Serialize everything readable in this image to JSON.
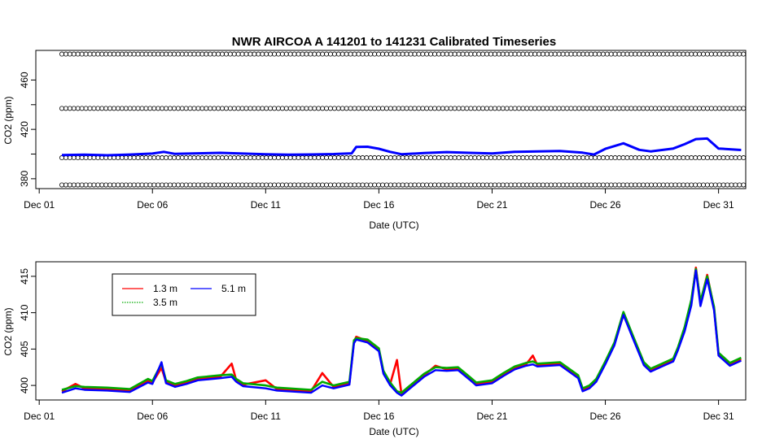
{
  "title": "NWR   AIRCOA  A   141201  to  141231   Calibrated Timeseries",
  "colors": {
    "ch1": "#ff0000",
    "ch2": "#00aa00",
    "ch3": "#0000ff",
    "ref": "#000000"
  },
  "chart_data": [
    {
      "type": "scatter",
      "name": "calibrated-timeseries-with-standards",
      "xlabel": "Date (UTC)",
      "ylabel": "CO2 (ppm)",
      "xticks": [
        "Dec 01",
        "Dec 06",
        "Dec 11",
        "Dec 16",
        "Dec 21",
        "Dec 26",
        "Dec 31"
      ],
      "xtick_days": [
        1,
        6,
        11,
        16,
        21,
        26,
        31
      ],
      "xlim": [
        0.85,
        32.2
      ],
      "yticks": [
        380,
        420,
        460
      ],
      "yticks_minor": [
        400,
        440
      ],
      "ylim": [
        372,
        484
      ],
      "x_range": [
        2.0,
        32.1
      ],
      "standards": [
        {
          "value": 375,
          "marker": "open-circle"
        },
        {
          "value": 397,
          "marker": "open-circle"
        },
        {
          "value": 437,
          "marker": "open-circle"
        },
        {
          "value": 481,
          "marker": "open-circle"
        }
      ],
      "series": [
        {
          "color_key": "ch3",
          "points": [
            [
              2.0,
              399.2
            ],
            [
              3.0,
              399.5
            ],
            [
              4.0,
              399.0
            ],
            [
              5.0,
              399.6
            ],
            [
              6.0,
              400.4
            ],
            [
              6.5,
              401.8
            ],
            [
              7.0,
              400.1
            ],
            [
              8.0,
              400.6
            ],
            [
              9.0,
              401.0
            ],
            [
              10.0,
              400.4
            ],
            [
              11.0,
              399.9
            ],
            [
              12.0,
              399.5
            ],
            [
              13.0,
              399.7
            ],
            [
              14.0,
              400.0
            ],
            [
              14.8,
              400.6
            ],
            [
              15.0,
              405.8
            ],
            [
              15.5,
              405.9
            ],
            [
              16.0,
              404.3
            ],
            [
              16.5,
              401.8
            ],
            [
              17.0,
              399.9
            ],
            [
              18.0,
              400.8
            ],
            [
              19.0,
              401.6
            ],
            [
              20.0,
              401.0
            ],
            [
              21.0,
              400.5
            ],
            [
              22.0,
              401.8
            ],
            [
              23.0,
              402.2
            ],
            [
              24.0,
              402.5
            ],
            [
              25.0,
              401.1
            ],
            [
              25.5,
              399.6
            ],
            [
              26.0,
              404.2
            ],
            [
              26.8,
              408.7
            ],
            [
              27.5,
              403.4
            ],
            [
              28.0,
              402.2
            ],
            [
              29.0,
              404.5
            ],
            [
              29.5,
              408.0
            ],
            [
              30.0,
              412.1
            ],
            [
              30.5,
              412.6
            ],
            [
              31.0,
              404.5
            ],
            [
              32.0,
              403.3
            ]
          ]
        }
      ]
    },
    {
      "type": "line",
      "name": "calibrated-timeseries-by-height",
      "xlabel": "Date (UTC)",
      "ylabel": "CO2 (ppm)",
      "xticks": [
        "Dec 01",
        "Dec 06",
        "Dec 11",
        "Dec 16",
        "Dec 21",
        "Dec 26",
        "Dec 31"
      ],
      "xtick_days": [
        1,
        6,
        11,
        16,
        21,
        26,
        31
      ],
      "xlim": [
        0.85,
        32.2
      ],
      "yticks": [
        400,
        405,
        410,
        415
      ],
      "ylim": [
        398.0,
        417.0
      ],
      "legend": {
        "placement": "top-left",
        "entries": [
          "1.3 m",
          "5.1 m",
          "3.5 m"
        ]
      },
      "series": [
        {
          "name": "1.3 m",
          "color_key": "ch1",
          "x": [
            2.0,
            2.6,
            3.0,
            4.0,
            5.0,
            5.8,
            6.0,
            6.4,
            6.6,
            7.0,
            7.5,
            8.0,
            9.0,
            9.5,
            9.7,
            10.0,
            11.0,
            11.5,
            12.0,
            13.0,
            13.5,
            14.0,
            14.7,
            14.9,
            15.0,
            15.5,
            16.0,
            16.2,
            16.5,
            16.8,
            17.0,
            17.3,
            18.0,
            18.5,
            19.0,
            19.5,
            20.0,
            20.3,
            21.0,
            21.5,
            22.0,
            22.5,
            22.8,
            23.0,
            24.0,
            24.8,
            25.0,
            25.3,
            25.6,
            26.0,
            26.4,
            26.8,
            27.2,
            27.7,
            28.0,
            28.5,
            29.0,
            29.2,
            29.5,
            29.8,
            30.0,
            30.2,
            30.5,
            30.8,
            31.0,
            31.5,
            32.0
          ],
          "y": [
            399.2,
            400.2,
            399.6,
            399.5,
            399.3,
            400.6,
            400.4,
            402.4,
            400.5,
            400.0,
            400.4,
            400.9,
            401.2,
            403.0,
            400.7,
            400.1,
            400.7,
            399.5,
            399.4,
            399.2,
            401.7,
            399.8,
            400.3,
            406.0,
            406.7,
            406.1,
            404.9,
            401.7,
            400.2,
            403.5,
            398.8,
            399.6,
            401.4,
            402.7,
            402.2,
            402.3,
            401.0,
            400.2,
            400.5,
            401.5,
            402.4,
            402.9,
            404.1,
            402.8,
            403.0,
            401.2,
            399.4,
            399.8,
            400.7,
            403.1,
            405.7,
            409.7,
            406.8,
            403.0,
            402.1,
            402.8,
            403.5,
            405.0,
            407.7,
            411.5,
            416.2,
            411.4,
            415.2,
            410.6,
            404.3,
            402.9,
            403.6
          ]
        },
        {
          "name": "3.5 m",
          "color_key": "ch2",
          "x": [
            2.0,
            2.6,
            3.0,
            4.0,
            5.0,
            5.8,
            6.0,
            6.4,
            6.6,
            7.0,
            7.5,
            8.0,
            9.0,
            9.5,
            9.7,
            10.0,
            11.0,
            11.5,
            12.0,
            13.0,
            13.5,
            14.0,
            14.7,
            14.9,
            15.0,
            15.5,
            16.0,
            16.2,
            16.5,
            16.8,
            17.0,
            17.3,
            18.0,
            18.5,
            19.0,
            19.5,
            20.0,
            20.3,
            21.0,
            21.5,
            22.0,
            22.5,
            22.8,
            23.0,
            24.0,
            24.8,
            25.0,
            25.3,
            25.6,
            26.0,
            26.4,
            26.8,
            27.2,
            27.7,
            28.0,
            28.5,
            29.0,
            29.2,
            29.5,
            29.8,
            30.0,
            30.2,
            30.5,
            30.8,
            31.0,
            31.5,
            32.0
          ],
          "y": [
            399.4,
            399.9,
            399.8,
            399.7,
            399.5,
            400.9,
            400.6,
            403.0,
            400.7,
            400.2,
            400.6,
            401.1,
            401.4,
            401.5,
            400.9,
            400.3,
            400.0,
            399.7,
            399.6,
            399.4,
            400.5,
            400.0,
            400.5,
            406.2,
            406.5,
            406.3,
            405.1,
            402.0,
            400.4,
            399.2,
            399.0,
            399.8,
            401.6,
            402.5,
            402.4,
            402.5,
            401.2,
            400.4,
            400.7,
            401.7,
            402.6,
            403.1,
            403.3,
            403.0,
            403.2,
            401.4,
            399.6,
            400.0,
            400.9,
            403.3,
            405.9,
            410.1,
            407.0,
            403.2,
            402.3,
            403.0,
            403.7,
            405.2,
            408.0,
            411.8,
            416.0,
            411.6,
            415.0,
            410.8,
            404.5,
            403.1,
            403.8
          ]
        },
        {
          "name": "5.1 m",
          "color_key": "ch3",
          "x": [
            2.0,
            2.6,
            3.0,
            4.0,
            5.0,
            5.8,
            6.0,
            6.4,
            6.6,
            7.0,
            7.5,
            8.0,
            9.0,
            9.5,
            9.7,
            10.0,
            11.0,
            11.5,
            12.0,
            13.0,
            13.5,
            14.0,
            14.7,
            14.9,
            15.0,
            15.5,
            16.0,
            16.2,
            16.5,
            16.8,
            17.0,
            17.3,
            18.0,
            18.5,
            19.0,
            19.5,
            20.0,
            20.3,
            21.0,
            21.5,
            22.0,
            22.5,
            22.8,
            23.0,
            24.0,
            24.8,
            25.0,
            25.3,
            25.6,
            26.0,
            26.4,
            26.8,
            27.2,
            27.7,
            28.0,
            28.5,
            29.0,
            29.2,
            29.5,
            29.8,
            30.0,
            30.2,
            30.5,
            30.8,
            31.0,
            31.5,
            32.0
          ],
          "y": [
            399.0,
            399.6,
            399.4,
            399.3,
            399.1,
            400.4,
            400.2,
            403.2,
            400.3,
            399.8,
            400.2,
            400.7,
            401.0,
            401.2,
            400.5,
            399.9,
            399.6,
            399.3,
            399.2,
            399.0,
            400.0,
            399.6,
            400.1,
            405.8,
            406.3,
            405.9,
            404.7,
            401.6,
            400.0,
            399.0,
            398.6,
            399.4,
            401.2,
            402.1,
            402.0,
            402.1,
            400.8,
            400.0,
            400.3,
            401.3,
            402.2,
            402.7,
            402.9,
            402.6,
            402.8,
            401.0,
            399.2,
            399.6,
            400.5,
            402.9,
            405.5,
            409.7,
            406.6,
            402.8,
            401.9,
            402.6,
            403.3,
            404.8,
            407.4,
            411.0,
            415.8,
            410.9,
            414.6,
            410.3,
            404.1,
            402.7,
            403.4
          ]
        }
      ]
    }
  ]
}
